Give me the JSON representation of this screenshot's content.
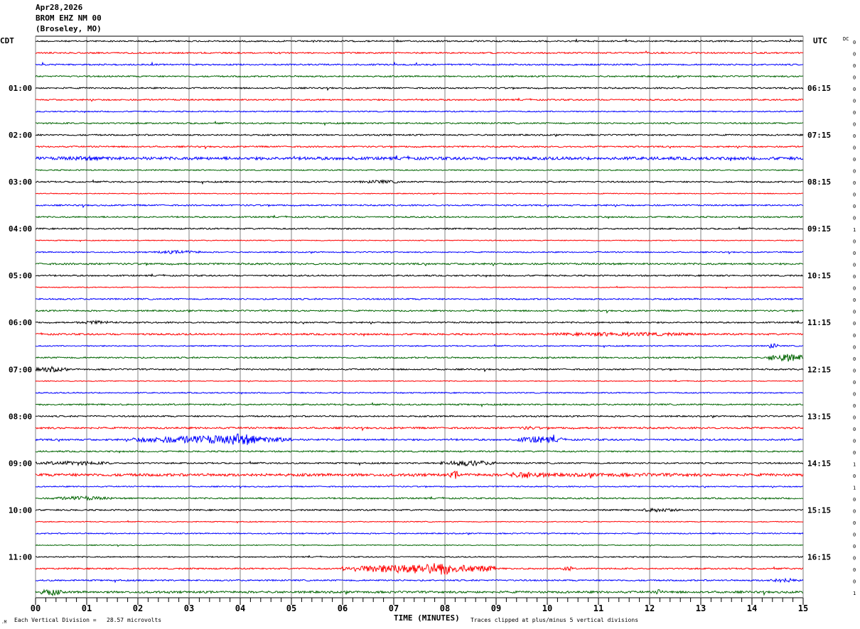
{
  "header": {
    "date": "Apr28,2026",
    "station": "BROM EHZ NM 00",
    "location": "(Broseley, MO)"
  },
  "left_tz": "CDT",
  "right_tz": "UTC",
  "dc_label": "DC",
  "footer": {
    "scale": "Each Vertical Division =   28.57 microvolts",
    "xlabel": "TIME (MINUTES)",
    "clip_note": "Traces clipped at plus/minus 5 vertical divisions",
    "corner_mark": ".M"
  },
  "chart_data": {
    "type": "line",
    "title": "BROM EHZ NM 00 helicorder",
    "xlabel": "TIME (MINUTES)",
    "xlim": [
      0,
      15
    ],
    "x_ticks": [
      "00",
      "01",
      "02",
      "03",
      "04",
      "05",
      "06",
      "07",
      "08",
      "09",
      "10",
      "11",
      "12",
      "13",
      "14",
      "15"
    ],
    "rows_per_hour": 4,
    "row_count": 48,
    "trace_colors": [
      "#000000",
      "#ff0000",
      "#0000ff",
      "#006400"
    ],
    "left_labels": [
      "",
      "01:00",
      "02:00",
      "03:00",
      "04:00",
      "05:00",
      "06:00",
      "07:00",
      "08:00",
      "09:00",
      "10:00",
      "11:00"
    ],
    "right_labels": [
      "",
      "06:15",
      "07:15",
      "08:15",
      "09:15",
      "10:15",
      "11:15",
      "12:15",
      "13:15",
      "14:15",
      "15:15",
      "16:15"
    ],
    "dc_values": [
      0,
      0,
      0,
      0,
      0,
      0,
      0,
      0,
      0,
      0,
      0,
      0,
      0,
      0,
      0,
      0,
      1,
      0,
      0,
      0,
      0,
      0,
      0,
      0,
      0,
      0,
      0,
      0,
      0,
      0,
      0,
      0,
      0,
      0,
      0,
      0,
      1,
      0,
      1,
      0,
      0,
      0,
      0,
      0,
      0,
      0,
      0,
      1
    ],
    "base_noise": [
      1,
      1,
      1,
      1,
      1,
      1,
      0.8,
      1,
      1,
      1,
      2,
      0.8,
      1,
      0.6,
      1,
      1,
      1,
      0.6,
      0.8,
      1.2,
      1,
      0.6,
      1,
      1,
      1,
      1.2,
      0.8,
      1,
      1,
      0.6,
      0.8,
      1,
      1,
      1.2,
      1.2,
      1,
      1,
      1.8,
      0.8,
      1,
      1,
      0.6,
      0.8,
      0.6,
      0.8,
      1,
      1,
      1.4
    ],
    "events": [
      {
        "row": 10,
        "start": 0,
        "end": 2,
        "amp": 3
      },
      {
        "row": 12,
        "start": 6.3,
        "end": 7.2,
        "amp": 2.5
      },
      {
        "row": 18,
        "start": 2.3,
        "end": 3.3,
        "amp": 2.5
      },
      {
        "row": 24,
        "start": 0.8,
        "end": 1.6,
        "amp": 2.5
      },
      {
        "row": 25,
        "start": 10,
        "end": 13,
        "amp": 3
      },
      {
        "row": 26,
        "start": 14.3,
        "end": 14.5,
        "amp": 4
      },
      {
        "row": 27,
        "start": 14.3,
        "end": 15,
        "amp": 6
      },
      {
        "row": 28,
        "start": 0,
        "end": 0.6,
        "amp": 4
      },
      {
        "row": 33,
        "start": 9.4,
        "end": 9.9,
        "amp": 2.5
      },
      {
        "row": 34,
        "start": 1.9,
        "end": 5,
        "amp": 6
      },
      {
        "row": 34,
        "start": 3.6,
        "end": 4.4,
        "amp": 9
      },
      {
        "row": 34,
        "start": 9.4,
        "end": 10.3,
        "amp": 5
      },
      {
        "row": 36,
        "start": 0,
        "end": 1.5,
        "amp": 3
      },
      {
        "row": 36,
        "start": 7.9,
        "end": 9,
        "amp": 4
      },
      {
        "row": 37,
        "start": 7.3,
        "end": 15,
        "amp": 2.5
      },
      {
        "row": 37,
        "start": 8.1,
        "end": 8.3,
        "amp": 6
      },
      {
        "row": 37,
        "start": 9.2,
        "end": 10,
        "amp": 5
      },
      {
        "row": 39,
        "start": 0.3,
        "end": 1.5,
        "amp": 3
      },
      {
        "row": 40,
        "start": 11.8,
        "end": 12.6,
        "amp": 3
      },
      {
        "row": 45,
        "start": 6,
        "end": 9,
        "amp": 7
      },
      {
        "row": 45,
        "start": 7.6,
        "end": 8.2,
        "amp": 10
      },
      {
        "row": 45,
        "start": 10.3,
        "end": 10.5,
        "amp": 4
      },
      {
        "row": 46,
        "start": 14.3,
        "end": 15,
        "amp": 3
      },
      {
        "row": 47,
        "start": 0.1,
        "end": 0.5,
        "amp": 5
      },
      {
        "row": 47,
        "start": 12.1,
        "end": 12.3,
        "amp": 4
      }
    ]
  }
}
